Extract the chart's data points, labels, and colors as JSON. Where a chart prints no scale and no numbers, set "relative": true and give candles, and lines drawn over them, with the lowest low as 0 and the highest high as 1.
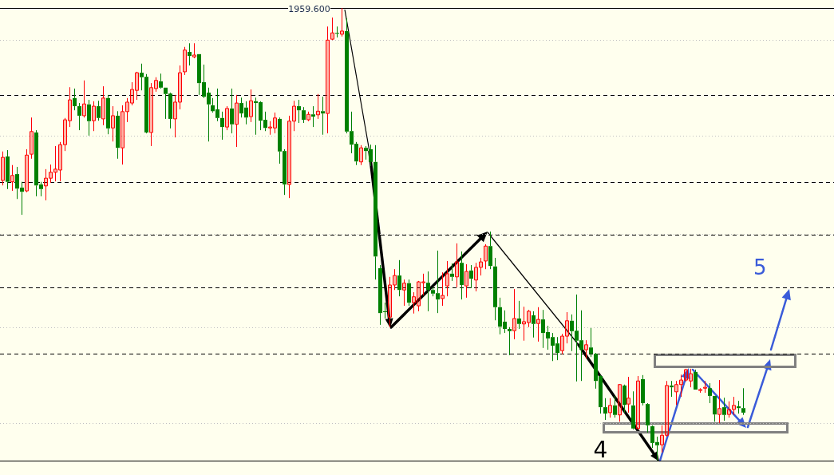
{
  "chart_data": {
    "type": "candlestick",
    "relative": true,
    "tick_labels": false,
    "categories": [
      null,
      null,
      null,
      null,
      null,
      null,
      null,
      null,
      null,
      null,
      null,
      null,
      null,
      null,
      null,
      null,
      null,
      null,
      null,
      null,
      null,
      null,
      null,
      null,
      null,
      null,
      null,
      null,
      null,
      null,
      null,
      null,
      null,
      null,
      null,
      null,
      null,
      null,
      null,
      null,
      null,
      null,
      null,
      null,
      null,
      null,
      null,
      null,
      null,
      null,
      null,
      null,
      null,
      null,
      null,
      null,
      null,
      null,
      null,
      null,
      null,
      null,
      null,
      null,
      null,
      null,
      null,
      null,
      null,
      null,
      null,
      null,
      null,
      null,
      null,
      null,
      null,
      null,
      null,
      null,
      null,
      null,
      null,
      null,
      null,
      null,
      null,
      null,
      null,
      null,
      null,
      null,
      null,
      null,
      null,
      null,
      null,
      null,
      null,
      null,
      null,
      null,
      null,
      null,
      null,
      null,
      null,
      null,
      null,
      null,
      null,
      null,
      null,
      null,
      null,
      null,
      null,
      null,
      null,
      null,
      null,
      null,
      null,
      null,
      null,
      null,
      null,
      null,
      null,
      null,
      null,
      null,
      null,
      null,
      null,
      null,
      null,
      null,
      null,
      null,
      null,
      null,
      null,
      null,
      null,
      null,
      null,
      null,
      null,
      null,
      null,
      null,
      null,
      null,
      null,
      null
    ],
    "ohlc": [
      [
        0.619,
        0.683,
        0.608,
        0.67
      ],
      [
        0.672,
        0.686,
        0.6,
        0.616
      ],
      [
        0.616,
        0.653,
        0.596,
        0.63
      ],
      [
        0.633,
        0.649,
        0.578,
        0.601
      ],
      [
        0.603,
        0.616,
        0.543,
        0.594
      ],
      [
        0.596,
        0.688,
        0.593,
        0.675
      ],
      [
        0.677,
        0.758,
        0.667,
        0.727
      ],
      [
        0.725,
        0.73,
        0.584,
        0.608
      ],
      [
        0.61,
        0.616,
        0.584,
        0.6
      ],
      [
        0.607,
        0.644,
        0.575,
        0.624
      ],
      [
        0.624,
        0.654,
        0.614,
        0.637
      ],
      [
        0.637,
        0.695,
        0.617,
        0.644
      ],
      [
        0.642,
        0.704,
        0.617,
        0.698
      ],
      [
        0.698,
        0.757,
        0.684,
        0.753
      ],
      [
        0.751,
        0.825,
        0.737,
        0.797
      ],
      [
        0.801,
        0.822,
        0.774,
        0.783
      ],
      [
        0.783,
        0.79,
        0.73,
        0.762
      ],
      [
        0.762,
        0.84,
        0.758,
        0.788
      ],
      [
        0.787,
        0.797,
        0.718,
        0.75
      ],
      [
        0.751,
        0.794,
        0.728,
        0.783
      ],
      [
        0.783,
        0.795,
        0.751,
        0.757
      ],
      [
        0.755,
        0.827,
        0.741,
        0.801
      ],
      [
        0.801,
        0.808,
        0.721,
        0.734
      ],
      [
        0.735,
        0.783,
        0.705,
        0.762
      ],
      [
        0.762,
        0.772,
        0.667,
        0.691
      ],
      [
        0.691,
        0.785,
        0.654,
        0.771
      ],
      [
        0.771,
        0.801,
        0.748,
        0.792
      ],
      [
        0.79,
        0.836,
        0.785,
        0.82
      ],
      [
        0.818,
        0.859,
        0.797,
        0.857
      ],
      [
        0.857,
        0.877,
        0.818,
        0.847
      ],
      [
        0.848,
        0.854,
        0.723,
        0.725
      ],
      [
        0.725,
        0.834,
        0.695,
        0.824
      ],
      [
        0.822,
        0.847,
        0.815,
        0.84
      ],
      [
        0.838,
        0.855,
        0.822,
        0.824
      ],
      [
        0.824,
        0.824,
        0.755,
        0.81
      ],
      [
        0.811,
        0.813,
        0.734,
        0.755
      ],
      [
        0.755,
        0.808,
        0.714,
        0.792
      ],
      [
        0.792,
        0.873,
        0.776,
        0.857
      ],
      [
        0.859,
        0.914,
        0.852,
        0.907
      ],
      [
        0.903,
        0.922,
        0.873,
        0.894
      ],
      [
        0.892,
        0.922,
        0.889,
        0.896
      ],
      [
        0.898,
        0.898,
        0.808,
        0.834
      ],
      [
        0.836,
        0.875,
        0.801,
        0.804
      ],
      [
        0.813,
        0.824,
        0.705,
        0.787
      ],
      [
        0.785,
        0.801,
        0.769,
        0.772
      ],
      [
        0.776,
        0.822,
        0.75,
        0.757
      ],
      [
        0.757,
        0.771,
        0.709,
        0.737
      ],
      [
        0.737,
        0.783,
        0.73,
        0.778
      ],
      [
        0.778,
        0.822,
        0.723,
        0.743
      ],
      [
        0.743,
        0.808,
        0.693,
        0.79
      ],
      [
        0.79,
        0.802,
        0.758,
        0.767
      ],
      [
        0.78,
        0.794,
        0.743,
        0.758
      ],
      [
        0.76,
        0.82,
        0.748,
        0.795
      ],
      [
        0.794,
        0.802,
        0.72,
        0.79
      ],
      [
        0.792,
        0.794,
        0.73,
        0.751
      ],
      [
        0.753,
        0.771,
        0.728,
        0.735
      ],
      [
        0.735,
        0.75,
        0.72,
        0.737
      ],
      [
        0.735,
        0.769,
        0.723,
        0.757
      ],
      [
        0.755,
        0.758,
        0.656,
        0.683
      ],
      [
        0.684,
        0.688,
        0.587,
        0.61
      ],
      [
        0.61,
        0.762,
        0.58,
        0.75
      ],
      [
        0.75,
        0.795,
        0.728,
        0.783
      ],
      [
        0.783,
        0.797,
        0.746,
        0.774
      ],
      [
        0.774,
        0.781,
        0.746,
        0.753
      ],
      [
        0.753,
        0.771,
        0.75,
        0.765
      ],
      [
        0.765,
        0.783,
        0.737,
        0.76
      ],
      [
        0.764,
        0.81,
        0.755,
        0.772
      ],
      [
        0.772,
        0.804,
        0.72,
        0.767
      ],
      [
        0.767,
        0.959,
        0.723,
        0.929
      ],
      [
        0.931,
        0.979,
        0.929,
        0.945
      ],
      [
        0.945,
        0.959,
        0.935,
        0.944
      ],
      [
        0.942,
        1,
        0.937,
        0.949
      ],
      [
        0.949,
        0.977,
        0.723,
        0.727
      ],
      [
        0.728,
        0.771,
        0.679,
        0.698
      ],
      [
        0.7,
        0.704,
        0.653,
        0.661
      ],
      [
        0.66,
        0.697,
        0.653,
        0.691
      ],
      [
        0.691,
        0.695,
        0.665,
        0.684
      ],
      [
        0.688,
        0.698,
        0.651,
        0.66
      ],
      [
        0.66,
        0.697,
        0.4,
        0.451
      ],
      [
        0.425,
        0.432,
        0.3,
        0.326
      ],
      [
        0.33,
        0.349,
        0.314,
        0.328
      ],
      [
        0.317,
        0.406,
        0.295,
        0.388
      ],
      [
        0.388,
        0.423,
        0.377,
        0.409
      ],
      [
        0.409,
        0.443,
        0.363,
        0.377
      ],
      [
        0.377,
        0.4,
        0.342,
        0.392
      ],
      [
        0.392,
        0.4,
        0.342,
        0.349
      ],
      [
        0.349,
        0.372,
        0.325,
        0.362
      ],
      [
        0.342,
        0.397,
        0.33,
        0.395
      ],
      [
        0.393,
        0.413,
        0.365,
        0.395
      ],
      [
        0.393,
        0.418,
        0.33,
        0.377
      ],
      [
        0.377,
        0.383,
        0.363,
        0.369
      ],
      [
        0.37,
        0.464,
        0.326,
        0.356
      ],
      [
        0.358,
        0.416,
        0.342,
        0.365
      ],
      [
        0.386,
        0.441,
        0.363,
        0.413
      ],
      [
        0.413,
        0.436,
        0.397,
        0.406
      ],
      [
        0.406,
        0.48,
        0.383,
        0.439
      ],
      [
        0.437,
        0.462,
        0.356,
        0.388
      ],
      [
        0.386,
        0.434,
        0.36,
        0.418
      ],
      [
        0.42,
        0.432,
        0.381,
        0.402
      ],
      [
        0.399,
        0.437,
        0.374,
        0.427
      ],
      [
        0.427,
        0.448,
        0.409,
        0.439
      ],
      [
        0.441,
        0.478,
        0.423,
        0.474
      ],
      [
        0.474,
        0.506,
        0.423,
        0.43
      ],
      [
        0.429,
        0.448,
        0.31,
        0.339
      ],
      [
        0.339,
        0.36,
        0.279,
        0.296
      ],
      [
        0.307,
        0.332,
        0.282,
        0.291
      ],
      [
        0.291,
        0.295,
        0.233,
        0.286
      ],
      [
        0.287,
        0.379,
        0.268,
        0.314
      ],
      [
        0.314,
        0.353,
        0.291,
        0.302
      ],
      [
        0.302,
        0.34,
        0.265,
        0.307
      ],
      [
        0.305,
        0.333,
        0.295,
        0.33
      ],
      [
        0.321,
        0.33,
        0.272,
        0.302
      ],
      [
        0.303,
        0.339,
        0.263,
        0.312
      ],
      [
        0.312,
        0.333,
        0.249,
        0.282
      ],
      [
        0.284,
        0.298,
        0.245,
        0.27
      ],
      [
        0.273,
        0.282,
        0.22,
        0.254
      ],
      [
        0.259,
        0.273,
        0.222,
        0.238
      ],
      [
        0.243,
        0.28,
        0.235,
        0.275
      ],
      [
        0.275,
        0.328,
        0.259,
        0.309
      ],
      [
        0.309,
        0.323,
        0.242,
        0.286
      ],
      [
        0.287,
        0.367,
        0.175,
        0.265
      ],
      [
        0.266,
        0.332,
        0.176,
        0.245
      ],
      [
        0.245,
        0.266,
        0.226,
        0.256
      ],
      [
        0.25,
        0.293,
        0.229,
        0.236
      ],
      [
        0.236,
        0.238,
        0.159,
        0.176
      ],
      [
        0.187,
        0.189,
        0.104,
        0.118
      ],
      [
        0.118,
        0.138,
        0.09,
        0.104
      ],
      [
        0.106,
        0.138,
        0.095,
        0.122
      ],
      [
        0.122,
        0.143,
        0.095,
        0.101
      ],
      [
        0.101,
        0.169,
        0.086,
        0.168
      ],
      [
        0.166,
        0.168,
        0.106,
        0.123
      ],
      [
        0.125,
        0.185,
        0.106,
        0.138
      ],
      [
        0.122,
        0.153,
        0.069,
        0.071
      ],
      [
        0.071,
        0.187,
        0.069,
        0.176
      ],
      [
        0.18,
        0.189,
        0.122,
        0.127
      ],
      [
        0.125,
        0.127,
        0.062,
        0.078
      ],
      [
        0.076,
        0.078,
        0.028,
        0.039
      ],
      [
        0.041,
        0.053,
        0,
        0.034
      ],
      [
        0.035,
        0.078,
        0.018,
        0.056
      ],
      [
        0.056,
        0.176,
        0.053,
        0.166
      ],
      [
        0.166,
        0.176,
        0.141,
        0.162
      ],
      [
        0.152,
        0.176,
        0.123,
        0.168
      ],
      [
        0.168,
        0.19,
        0.141,
        0.178
      ],
      [
        0.178,
        0.203,
        0.175,
        0.201
      ],
      [
        0.176,
        0.203,
        0.162,
        0.192
      ],
      [
        0.196,
        0.201,
        0.157,
        0.157
      ],
      [
        0.155,
        0.16,
        0.15,
        0.157
      ],
      [
        0.16,
        0.176,
        0.15,
        0.162
      ],
      [
        0.16,
        0.171,
        0.127,
        0.143
      ],
      [
        0.143,
        0.143,
        0.086,
        0.102
      ],
      [
        0.102,
        0.178,
        0.083,
        0.115
      ],
      [
        0.118,
        0.139,
        0.088,
        0.101
      ],
      [
        0.102,
        0.131,
        0.095,
        0.113
      ],
      [
        0.113,
        0.141,
        0.101,
        0.122
      ],
      [
        0.12,
        0.132,
        0.104,
        0.116
      ],
      [
        0.116,
        0.16,
        0.101,
        0.106
      ]
    ],
    "ref_lines": [
      {
        "axis": "y",
        "value": 1,
        "color": "#000000",
        "line_style": "solid"
      },
      {
        "axis": "y",
        "value": 0,
        "color": "#000000",
        "line_style": "solid"
      },
      {
        "axis": "y",
        "value": 0.808,
        "color": "#000000",
        "line_style": "dashed"
      },
      {
        "axis": "y",
        "value": 0.616,
        "color": "#000000",
        "line_style": "dashed"
      },
      {
        "axis": "y",
        "value": 0.499,
        "color": "#000000",
        "line_style": "dashed"
      },
      {
        "axis": "y",
        "value": 0.383,
        "color": "#000000",
        "line_style": "dashed"
      },
      {
        "axis": "y",
        "value": 0.236,
        "color": "#000000",
        "line_style": "dashed"
      },
      {
        "axis": "y",
        "value": 0.929,
        "color": "#c0c0c0",
        "line_style": "dotted"
      },
      {
        "axis": "y",
        "value": 0.718,
        "color": "#c0c0c0",
        "line_style": "dotted"
      },
      {
        "axis": "y",
        "value": 0.501,
        "color": "#c0c0c0",
        "line_style": "dotted"
      },
      {
        "axis": "y",
        "value": 0.295,
        "color": "#c0c0c0",
        "line_style": "dotted"
      },
      {
        "axis": "y",
        "value": 0.083,
        "color": "#c0c0c0",
        "line_style": "dotted"
      }
    ],
    "annotations": [
      "1959.600",
      "4",
      "5"
    ]
  }
}
